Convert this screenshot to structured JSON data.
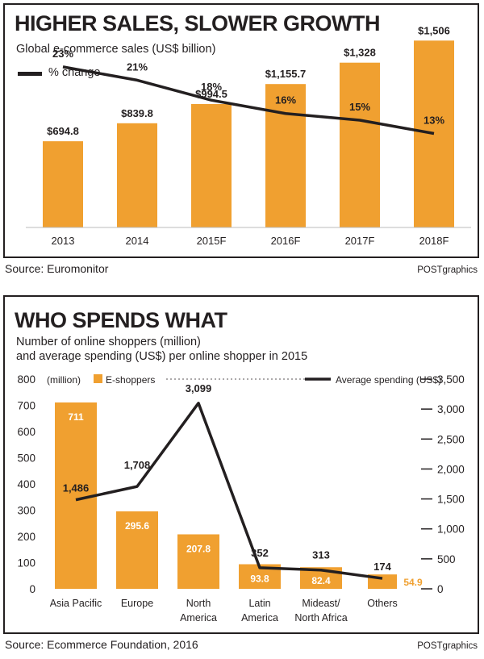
{
  "chart_data": [
    {
      "type": "bar",
      "title": "HIGHER SALES, SLOWER GROWTH",
      "subtitle": "Global e-commerce sales (US$ billion)",
      "legend": {
        "line_label": "% change",
        "placement": "top-left"
      },
      "categories": [
        "2013",
        "2014",
        "2015F",
        "2016F",
        "2017F",
        "2018F"
      ],
      "series": [
        {
          "values": [
            694.8,
            839.8,
            994.5,
            1155.7,
            1328,
            1506
          ],
          "labels": [
            "$694.8",
            "$839.8",
            "$994.5",
            "$1,155.7",
            "$1,328",
            "$1,506"
          ]
        },
        {
          "name": "% change",
          "kind": "line",
          "values": [
            23,
            21,
            18,
            16,
            15,
            13
          ],
          "labels": [
            "23%",
            "21%",
            "18%",
            "16%",
            "15%",
            "13%"
          ]
        }
      ],
      "ylim": [
        0,
        1560
      ],
      "grid": false
    },
    {
      "type": "bar",
      "title": "WHO SPENDS WHAT",
      "subtitle_lines": [
        "Number of online shoppers (million)",
        "and average spending (US$) per online shopper in 2015"
      ],
      "categories": [
        [
          "Asia Pacific"
        ],
        [
          "Europe"
        ],
        [
          "North",
          "America"
        ],
        [
          "Latin",
          "America"
        ],
        [
          "Mideast/",
          "North Africa"
        ],
        [
          "Others"
        ]
      ],
      "left_axis": {
        "unit_label": "(million)",
        "ticks": [
          "0",
          "100",
          "200",
          "300",
          "400",
          "500",
          "600",
          "700",
          "800"
        ],
        "ylim": [
          0,
          800
        ]
      },
      "right_axis": {
        "ticks": [
          "0",
          "500",
          "1,000",
          "1,500",
          "2,000",
          "2,500",
          "3,000",
          "3,500"
        ],
        "ylim": [
          0,
          3500
        ]
      },
      "series": [
        {
          "name": "E-shoppers",
          "kind": "bar",
          "values": [
            711,
            295.6,
            207.8,
            93.8,
            82.4,
            54.9
          ],
          "labels": [
            "711",
            "295.6",
            "207.8",
            "93.8",
            "82.4",
            "54.9"
          ]
        },
        {
          "name": "Average spending (US$)",
          "kind": "line",
          "values": [
            1486,
            1708,
            3099,
            352,
            313,
            174
          ],
          "labels": [
            "1,486",
            "1,708",
            "3,099",
            "352",
            "313",
            "174"
          ]
        }
      ],
      "legend_placement": "top",
      "grid": false
    }
  ],
  "source1": "Source: Euromonitor",
  "credit1": "POSTgraphics",
  "source2": "Source: Ecommerce Foundation, 2016",
  "credit2": "POSTgraphics",
  "colors": {
    "bar": "#f0a030",
    "line": "#231f20",
    "text": "#231f20",
    "bar_label_inside": "#ffffff"
  }
}
